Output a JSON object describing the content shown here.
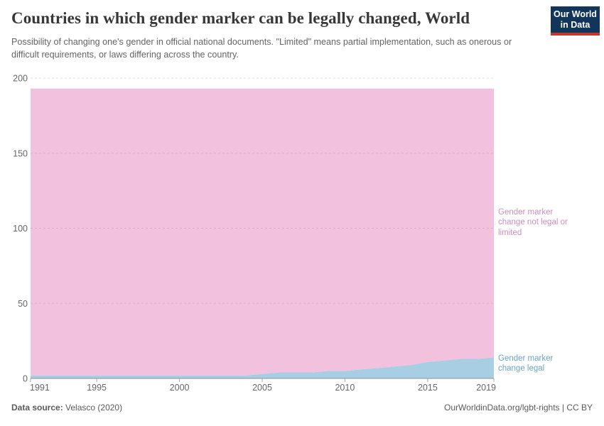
{
  "header": {
    "title": "Countries in which gender marker can be legally changed, World",
    "subtitle": "Possibility of changing one's gender in official national documents. \"Limited\" means partial implementation, such as onerous or difficult requirements, or laws differing across the country.",
    "logo": {
      "line1": "Our World",
      "line2": "in Data"
    },
    "logo_colors": {
      "background": "#12355b",
      "stripe": "#c9342b"
    }
  },
  "chart_data": {
    "type": "area",
    "stacked": true,
    "title": "Countries in which gender marker can be legally changed, World",
    "xlabel": "",
    "ylabel": "",
    "xlim": [
      1991,
      2019
    ],
    "ylim": [
      0,
      200
    ],
    "grid": true,
    "legend_position": "right",
    "x": [
      1991,
      1992,
      1993,
      1994,
      1995,
      1996,
      1997,
      1998,
      1999,
      2000,
      2001,
      2002,
      2003,
      2004,
      2005,
      2006,
      2007,
      2008,
      2009,
      2010,
      2011,
      2012,
      2013,
      2014,
      2015,
      2016,
      2017,
      2018,
      2019
    ],
    "xticks": [
      1991,
      1995,
      2000,
      2005,
      2010,
      2015,
      2019
    ],
    "yticks": [
      0,
      50,
      100,
      150,
      200
    ],
    "series": [
      {
        "id": "legal",
        "name": "Gender marker change legal",
        "label_lines": [
          "Gender marker",
          "change legal"
        ],
        "color": "#a8cee3",
        "label_color": "#6ba3c9",
        "values": [
          2,
          2,
          2,
          2,
          2,
          2,
          2,
          2,
          2,
          2,
          2,
          2,
          2,
          2,
          3,
          4,
          4,
          4,
          5,
          5,
          6,
          7,
          8,
          9,
          11,
          12,
          13,
          13,
          14
        ]
      },
      {
        "id": "not-legal-or-limited",
        "name": "Gender marker change not legal or limited",
        "label_lines": [
          "Gender marker",
          "change not legal or",
          "limited"
        ],
        "color": "#f2c1dd",
        "label_color": "#cf8ebc",
        "values": [
          191,
          191,
          191,
          191,
          191,
          191,
          191,
          191,
          191,
          191,
          191,
          191,
          191,
          191,
          190,
          189,
          189,
          189,
          188,
          188,
          187,
          186,
          185,
          184,
          182,
          181,
          180,
          180,
          179
        ]
      }
    ]
  },
  "footer": {
    "datasource_label": "Data source:",
    "datasource_value": " Velasco (2020)",
    "citation": "OurWorldinData.org/lgbt-rights | CC BY"
  }
}
